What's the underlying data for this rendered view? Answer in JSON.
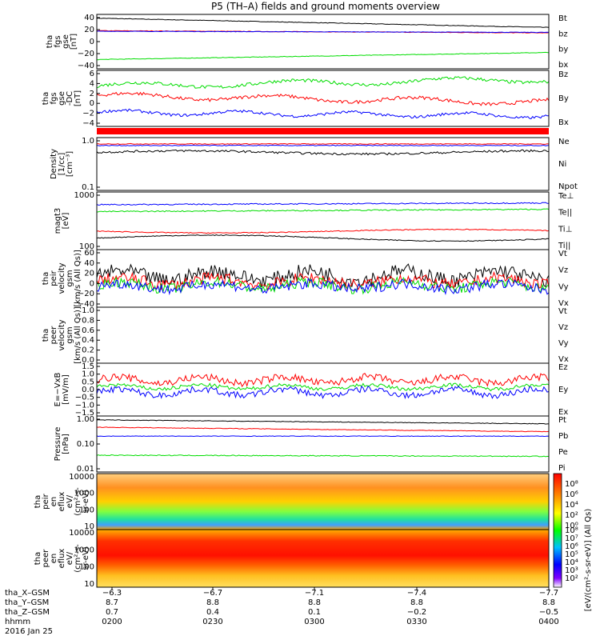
{
  "title": "P5 (TH–A) fields and ground moments overview",
  "colors": {
    "black": "#000000",
    "red": "#ff0000",
    "green": "#00dd00",
    "blue": "#0000ff"
  },
  "panels": [
    {
      "ylabel": [
        "tha",
        "fgs",
        "gse",
        "[nT]"
      ],
      "yticks": [
        "40",
        "20",
        "0",
        "−20",
        "−40"
      ],
      "legend": [
        {
          "t": "Bt",
          "c": "black"
        },
        {
          "t": "bz",
          "c": "red"
        },
        {
          "t": "by",
          "c": "green"
        },
        {
          "t": "bx",
          "c": "blue"
        }
      ]
    },
    {
      "ylabel": [
        "tha",
        "fgs",
        "gse",
        "-DC",
        "[nT]"
      ],
      "yticks": [
        "6",
        "4",
        "2",
        "0",
        "−2",
        "−4"
      ],
      "legend": [
        {
          "t": "Bz",
          "c": "red"
        },
        {
          "t": "By",
          "c": "green"
        },
        {
          "t": "Bx",
          "c": "blue"
        }
      ]
    },
    {
      "ylabel": [
        "Density",
        "[1/cc]",
        "[cm⁻³]"
      ],
      "yticks": [
        "1.0",
        "0.1"
      ],
      "legend": [
        {
          "t": "Ne",
          "c": "red"
        },
        {
          "t": "Ni",
          "c": "black"
        },
        {
          "t": "Npot",
          "c": "blue"
        }
      ]
    },
    {
      "ylabel": [
        "magt3",
        "[eV]"
      ],
      "yticks": [
        "1000",
        "100"
      ],
      "legend": [
        {
          "t": "Te⊥",
          "c": "red"
        },
        {
          "t": "Te||",
          "c": "black"
        },
        {
          "t": "Ti⊥",
          "c": "red"
        },
        {
          "t": "Ti||",
          "c": "green"
        }
      ]
    },
    {
      "ylabel": [
        "tha",
        "peir",
        "velocity",
        "gsm",
        "[km/s (All Qs)]"
      ],
      "yticks": [
        "60",
        "40",
        "20",
        "0",
        "−20",
        "−40"
      ],
      "legend": [
        {
          "t": "Vt",
          "c": "black"
        },
        {
          "t": "Vz",
          "c": "red"
        },
        {
          "t": "Vy",
          "c": "green"
        },
        {
          "t": "Vx",
          "c": "blue"
        }
      ]
    },
    {
      "ylabel": [
        "tha",
        "peer",
        "velocity",
        "gsm",
        "[km/s (All Qs)]"
      ],
      "yticks": [
        "1.0",
        "0.8",
        "0.6",
        "0.4",
        "0.2",
        "0.0"
      ],
      "legend": [
        {
          "t": "Vt",
          "c": "black"
        },
        {
          "t": "Vz",
          "c": "red"
        },
        {
          "t": "Vy",
          "c": "green"
        },
        {
          "t": "Vx",
          "c": "blue"
        }
      ]
    },
    {
      "ylabel": [
        "E=−VxB",
        "[mV/m]"
      ],
      "yticks": [
        "1.5",
        "1.0",
        "0.5",
        "0.0",
        "−0.5",
        "−1.0",
        "−1.5"
      ],
      "legend": [
        {
          "t": "Ez",
          "c": "red"
        },
        {
          "t": "Ey",
          "c": "green"
        },
        {
          "t": "Ex",
          "c": "blue"
        }
      ]
    },
    {
      "ylabel": [
        "Pressure",
        "[nPa]"
      ],
      "yticks": [
        "1.00",
        "0.10",
        "0.01"
      ],
      "legend": [
        {
          "t": "Pt",
          "c": "black"
        },
        {
          "t": "Pb",
          "c": "red"
        },
        {
          "t": "Pe",
          "c": "green"
        },
        {
          "t": "Pi",
          "c": "blue"
        }
      ]
    },
    {
      "ylabel": [
        "tha",
        "peir",
        "en",
        "eflux",
        "eV/",
        "(cm²-s-",
        "sr-eV)"
      ],
      "yticks": [
        "10000",
        "1000",
        "100",
        "10"
      ]
    },
    {
      "ylabel": [
        "tha",
        "peer",
        "en",
        "eflux",
        "eV/",
        "(cm²-s-",
        "sr-eV)"
      ],
      "yticks": [
        "10000",
        "1000",
        "100",
        "10"
      ]
    }
  ],
  "colorbar": {
    "top_ticks": [
      "10⁸",
      "10⁶",
      "10⁴",
      "10²",
      "10⁰"
    ],
    "bottom_ticks": [
      "10⁸",
      "10⁷",
      "10⁶",
      "10⁵",
      "10⁴",
      "10³",
      "10²"
    ],
    "label": "[eV/(cm²-s-sr-eV)] (All Qs)"
  },
  "footer": {
    "row_labels": [
      "tha_X–GSM",
      "tha_Y–GSM",
      "tha_Z–GSM",
      "hhmm",
      "2016 Jan 25"
    ],
    "columns": [
      {
        "x": "−6.3",
        "y": "8.7",
        "z": "0.7",
        "t": "0200"
      },
      {
        "x": "−6.7",
        "y": "8.8",
        "z": "0.4",
        "t": "0230"
      },
      {
        "x": "−7.1",
        "y": "8.8",
        "z": "0.1",
        "t": "0300"
      },
      {
        "x": "−7.4",
        "y": "8.8",
        "z": "−0.2",
        "t": "0330"
      },
      {
        "x": "−7.7",
        "y": "8.8",
        "z": "−0.5",
        "t": "0400"
      }
    ]
  },
  "chart_data": [
    {
      "type": "line",
      "title": "tha fgs gse",
      "ylim": [
        -40,
        40
      ],
      "series": [
        {
          "name": "Bt",
          "values": [
            35,
            33,
            30,
            28,
            26,
            24,
            22
          ]
        },
        {
          "name": "bz",
          "values": [
            16,
            16,
            15,
            15,
            14,
            14,
            13
          ]
        },
        {
          "name": "by",
          "values": [
            -25,
            -24,
            -22,
            -20,
            -18,
            -16,
            -14
          ]
        },
        {
          "name": "bx",
          "values": [
            15,
            15,
            15,
            15,
            15,
            14,
            14
          ]
        }
      ],
      "x": [
        "0200",
        "0220",
        "0240",
        "0300",
        "0320",
        "0340",
        "0400"
      ]
    },
    {
      "type": "line",
      "title": "tha fgs gse -DC",
      "ylim": [
        -5,
        6
      ],
      "series": [
        {
          "name": "Bz",
          "values": [
            3,
            3.5,
            3,
            3.5,
            2,
            2,
            1.5
          ]
        },
        {
          "name": "By",
          "values": [
            4,
            4.5,
            4.5,
            5,
            5,
            5.5,
            6
          ]
        },
        {
          "name": "Bx",
          "values": [
            -2,
            -2,
            -2.5,
            -3,
            -3,
            -3,
            -3
          ]
        }
      ],
      "x": [
        "0200",
        "0220",
        "0240",
        "0300",
        "0320",
        "0340",
        "0400"
      ]
    },
    {
      "type": "line",
      "title": "Density",
      "ylim": [
        0.1,
        1.2
      ],
      "series": [
        {
          "name": "Ne",
          "values": [
            0.9,
            0.9,
            0.9,
            0.9,
            0.9,
            0.9,
            0.9
          ]
        },
        {
          "name": "Ni",
          "values": [
            0.6,
            0.6,
            0.65,
            0.6,
            0.65,
            0.6,
            0.55
          ]
        },
        {
          "name": "Npot",
          "values": [
            0.85,
            0.85,
            0.85,
            0.85,
            0.85,
            0.85,
            0.8
          ]
        }
      ],
      "x": [
        "0200",
        "0220",
        "0240",
        "0300",
        "0320",
        "0340",
        "0400"
      ]
    },
    {
      "type": "line",
      "title": "magt3",
      "ylim": [
        100,
        10000
      ],
      "series": [
        {
          "name": "Te⊥",
          "values": [
            500,
            450,
            400,
            400,
            450,
            450,
            420
          ]
        },
        {
          "name": "Te||",
          "values": [
            4000,
            4000,
            4000,
            4000,
            4200,
            4300,
            4500
          ]
        },
        {
          "name": "Ti⊥",
          "values": [
            500,
            450,
            400,
            400,
            450,
            450,
            420
          ]
        },
        {
          "name": "Ti||",
          "values": [
            2500,
            2600,
            2700,
            2800,
            2900,
            3000,
            3000
          ]
        }
      ],
      "x": [
        "0200",
        "0220",
        "0240",
        "0300",
        "0320",
        "0340",
        "0400"
      ]
    },
    {
      "type": "line",
      "title": "tha peir velocity gsm",
      "ylim": [
        -40,
        60
      ],
      "series": [
        {
          "name": "Vt",
          "values": [
            15,
            15,
            15,
            15,
            15,
            15,
            15
          ]
        },
        {
          "name": "Vz",
          "values": [
            5,
            5,
            5,
            5,
            5,
            5,
            5
          ]
        },
        {
          "name": "Vy",
          "values": [
            0,
            0,
            0,
            0,
            0,
            0,
            0
          ]
        },
        {
          "name": "Vx",
          "values": [
            -2,
            -2,
            -2,
            -2,
            -2,
            -2,
            -2
          ]
        }
      ],
      "x": [
        "0200",
        "0220",
        "0240",
        "0300",
        "0320",
        "0340",
        "0400"
      ]
    },
    {
      "type": "line",
      "title": "tha peer velocity gsm",
      "ylim": [
        0,
        1
      ],
      "series": []
    },
    {
      "type": "line",
      "title": "E=−VxB",
      "ylim": [
        -1.5,
        1.5
      ],
      "series": [
        {
          "name": "Ez",
          "values": [
            0.6,
            0.6,
            0.6,
            0.6,
            0.6,
            0.6,
            0.6
          ]
        },
        {
          "name": "Ey",
          "values": [
            0.2,
            0.2,
            0.2,
            0.2,
            0.2,
            0.2,
            0.2
          ]
        },
        {
          "name": "Ex",
          "values": [
            -0.1,
            -0.1,
            -0.1,
            -0.1,
            -0.1,
            -0.1,
            -0.1
          ]
        }
      ],
      "x": [
        "0200",
        "0220",
        "0240",
        "0300",
        "0320",
        "0340",
        "0400"
      ]
    },
    {
      "type": "line",
      "title": "Pressure",
      "ylim": [
        0.01,
        1.0
      ],
      "series": [
        {
          "name": "Pt",
          "values": [
            0.55,
            0.5,
            0.45,
            0.4,
            0.35,
            0.3,
            0.28
          ]
        },
        {
          "name": "Pb",
          "values": [
            0.35,
            0.33,
            0.3,
            0.27,
            0.25,
            0.23,
            0.21
          ]
        },
        {
          "name": "Pe",
          "values": [
            0.045,
            0.04,
            0.035,
            0.038,
            0.04,
            0.037,
            0.035
          ]
        },
        {
          "name": "Pi",
          "values": [
            0.2,
            0.2,
            0.2,
            0.2,
            0.2,
            0.2,
            0.2
          ]
        }
      ],
      "x": [
        "0200",
        "0220",
        "0240",
        "0300",
        "0320",
        "0340",
        "0400"
      ]
    },
    {
      "type": "heatmap",
      "title": "tha peir en eflux",
      "ylim": [
        5,
        12000
      ]
    },
    {
      "type": "heatmap",
      "title": "tha peer en eflux",
      "ylim": [
        5,
        12000
      ]
    }
  ]
}
